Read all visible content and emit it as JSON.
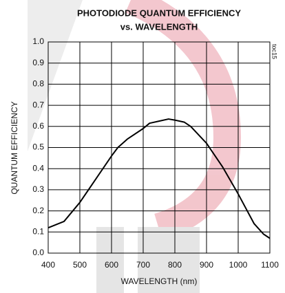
{
  "chart_data": {
    "type": "line",
    "title": "PHOTODIODE QUANTUM EFFICIENCY",
    "subtitle": "vs. WAVELENGTH",
    "xlabel": "WAVELENGTH (nm)",
    "ylabel": "QUANTUM EFFICIENCY",
    "annotation": "toc15",
    "x": [
      400,
      450,
      500,
      550,
      600,
      620,
      650,
      700,
      720,
      750,
      780,
      800,
      830,
      850,
      900,
      950,
      1000,
      1050,
      1080,
      1100
    ],
    "series": [
      {
        "name": "QUANTUM EFFICIENCY",
        "color": "#000000",
        "values": [
          0.12,
          0.15,
          0.24,
          0.35,
          0.46,
          0.5,
          0.54,
          0.59,
          0.615,
          0.625,
          0.635,
          0.63,
          0.62,
          0.6,
          0.52,
          0.41,
          0.28,
          0.14,
          0.09,
          0.07
        ]
      }
    ],
    "xlim": [
      400,
      1100
    ],
    "xticks": [
      400,
      500,
      600,
      700,
      800,
      900,
      1000,
      1100
    ],
    "ylim": [
      0,
      1
    ],
    "yticks": [
      {
        "value": 0,
        "label": "0.0"
      },
      0.1,
      0.2,
      0.3,
      0.4,
      0.5,
      0.6,
      0.7,
      0.8,
      0.9,
      {
        "value": 1,
        "label": "1.0"
      }
    ],
    "grid": true
  }
}
